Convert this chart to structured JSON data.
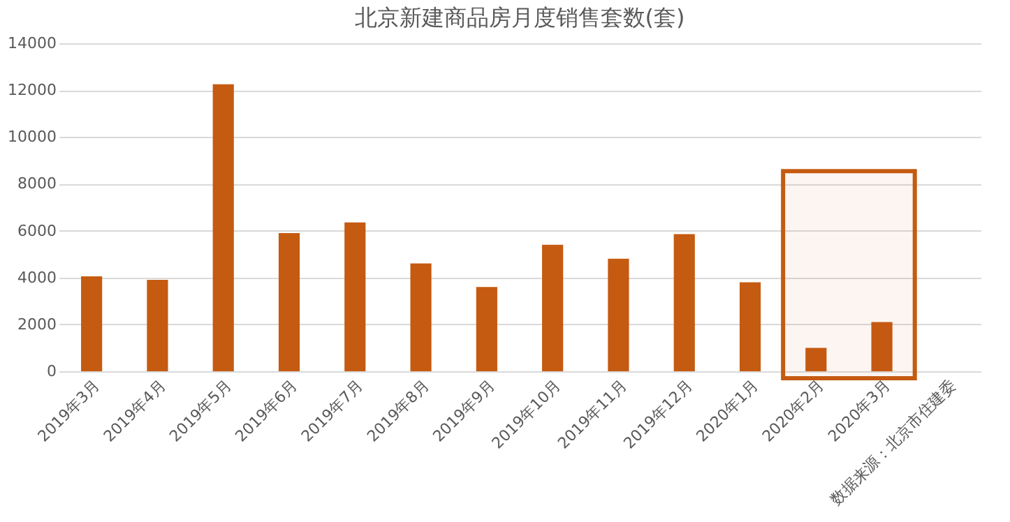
{
  "chart_data": {
    "type": "bar",
    "title": "北京新建商品房月度销售套数(套)",
    "categories": [
      "2019年3月",
      "2019年4月",
      "2019年5月",
      "2019年6月",
      "2019年7月",
      "2019年8月",
      "2019年9月",
      "2019年10月",
      "2019年11月",
      "2019年12月",
      "2020年1月",
      "2020年2月",
      "2020年3月"
    ],
    "values": [
      4050,
      3900,
      12250,
      5900,
      6350,
      4600,
      3600,
      5400,
      4800,
      5850,
      3800,
      1000,
      2100
    ],
    "color": "#c55a11",
    "ylim": [
      0,
      14000
    ],
    "yticks": [
      0,
      2000,
      4000,
      6000,
      8000,
      10000,
      12000,
      14000
    ],
    "grid": "y",
    "bands": [
      {
        "axis": "x",
        "from": "2020年2月",
        "to": "2020年3月",
        "color": "#c55a11"
      }
    ],
    "annotations": [
      "数据来源：北京市住建委"
    ]
  }
}
